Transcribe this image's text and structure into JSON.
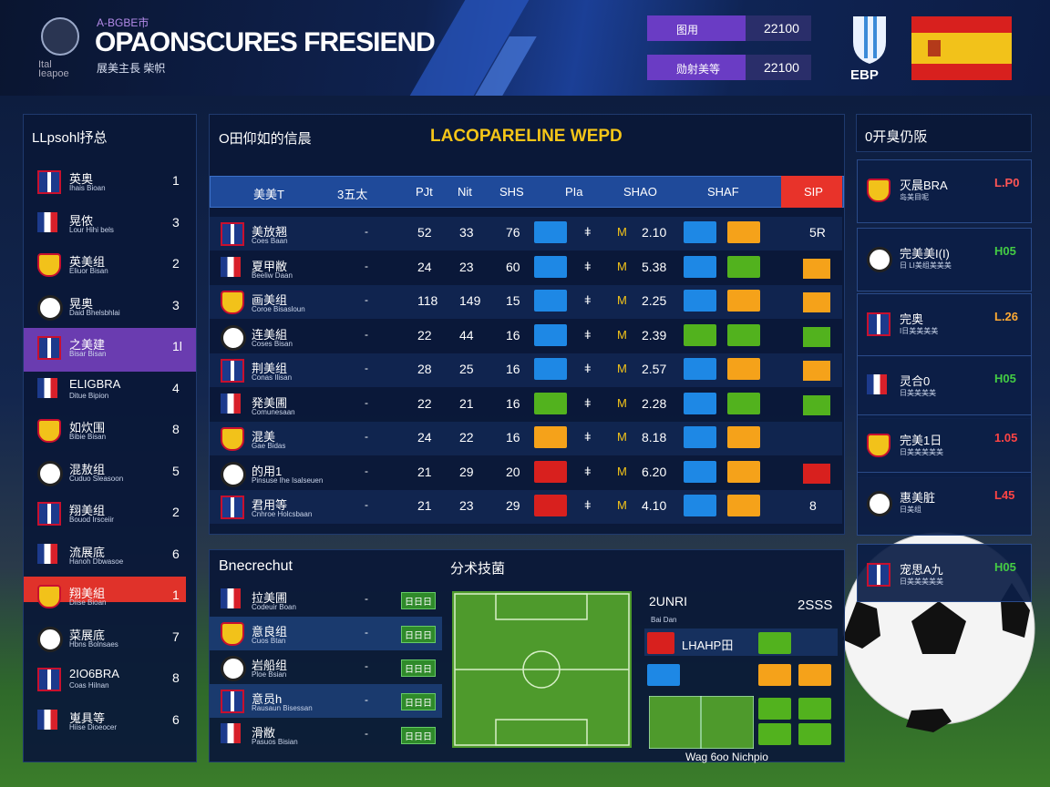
{
  "header": {
    "tag": "A-BGBE市",
    "title": "OPAONSCURES FRESIEND",
    "subtitle": "展美主長 柴帜",
    "logo_text": "Ital Ieapoe",
    "scores": [
      {
        "label": "图用",
        "value": "22100"
      },
      {
        "label": "勋射美等",
        "value": "22100"
      }
    ],
    "team_code": "EBP"
  },
  "left_panel": {
    "title": "LLpsohl抒总",
    "rows": [
      {
        "name": "英奥",
        "sub": "Ihais Bioan",
        "num": "1"
      },
      {
        "name": "晃侬",
        "sub": "Lour Hihi bels",
        "num": "3"
      },
      {
        "name": "英美组",
        "sub": "Eliuor Bisan",
        "num": "2"
      },
      {
        "name": "晃奥",
        "sub": "Daid Bhelsbhlai",
        "num": "3"
      },
      {
        "name": "之美建",
        "sub": "Bisar Bisan",
        "num": "1l"
      },
      {
        "name": "ELIGBRA",
        "sub": "Ditue Bipion",
        "num": "4"
      },
      {
        "name": "如炊围",
        "sub": "Bibie Bisan",
        "num": "8"
      },
      {
        "name": "混敖组",
        "sub": "Cuduo Sleasoon",
        "num": "5"
      },
      {
        "name": "翔美组",
        "sub": "Bouod Irsceiir",
        "num": "2"
      },
      {
        "name": "流展底",
        "sub": "Hanoh Dbwasoe",
        "num": "6"
      },
      {
        "name": "翔美組",
        "sub": "Diise Bioan",
        "num": "1"
      },
      {
        "name": "菜展底",
        "sub": "Hbns Bolnsaes",
        "num": "7"
      },
      {
        "name": "2IO6BRA",
        "sub": "Coas Hilnan",
        "num": "8"
      },
      {
        "name": "嵬具等",
        "sub": "Hiise Dioeocer",
        "num": "6"
      }
    ]
  },
  "main_table": {
    "section": "O田仰如的信晨",
    "title": "LACOPARELINE WEPD",
    "columns": [
      "美美T",
      "3五太",
      "PJt",
      "Nit",
      "SHS",
      "PIa",
      "SHAO",
      "SHAF",
      "SIP"
    ],
    "rows": [
      {
        "name": "美放翘",
        "sub": "Coes Baan",
        "dash": "-",
        "a": "52",
        "b": "33",
        "c": "76",
        "sym": "ǂ",
        "m": "M",
        "score": "2.10",
        "last": "5R"
      },
      {
        "name": "夏甲敝",
        "sub": "Beeliw Daan",
        "dash": "-",
        "a": "24",
        "b": "23",
        "c": "60",
        "sym": "ǂ",
        "m": "M",
        "score": "5.38"
      },
      {
        "name": "画美组",
        "sub": "Coroe Bisasloun",
        "dash": "-",
        "a": "118",
        "b": "149",
        "c": "15",
        "sym": "ǂ",
        "m": "M",
        "score": "2.25"
      },
      {
        "name": "连美組",
        "sub": "Coses Bisan",
        "dash": "-",
        "a": "22",
        "b": "44",
        "c": "16",
        "sym": "ǂ",
        "m": "M",
        "score": "2.39"
      },
      {
        "name": "荆美组",
        "sub": "Conas Ilisan",
        "dash": "-",
        "a": "28",
        "b": "25",
        "c": "16",
        "sym": "ǂ",
        "m": "M",
        "score": "2.57"
      },
      {
        "name": "発美圃",
        "sub": "Comunesaan",
        "dash": "-",
        "a": "22",
        "b": "21",
        "c": "16",
        "sym": "ǂ",
        "m": "M",
        "score": "2.28"
      },
      {
        "name": "混美",
        "sub": "Gae Bidas",
        "dash": "-",
        "a": "24",
        "b": "22",
        "c": "16",
        "sym": "ǂ",
        "m": "M",
        "score": "8.18"
      },
      {
        "name": "的用1",
        "sub": "Pinsuse Ihe Isalseuen",
        "dash": "-",
        "a": "21",
        "b": "29",
        "c": "20",
        "sym": "ǂ",
        "m": "M",
        "score": "6.20"
      },
      {
        "name": "君用等",
        "sub": "Cnhroe Holcsbaan",
        "dash": "-",
        "a": "21",
        "b": "23",
        "c": "29",
        "sym": "ǂ",
        "m": "M",
        "score": "4.10",
        "last": "8"
      }
    ]
  },
  "bottom_list": {
    "title": "Bnecrechut",
    "rows": [
      {
        "name": "拉美圃",
        "sub": "Codeuir Boan",
        "dash": "-",
        "badge": "日日日"
      },
      {
        "name": "意良组",
        "sub": "Cuos Btan",
        "dash": "-",
        "badge": "日日日"
      },
      {
        "name": "岩船组",
        "sub": "Ploe Bsian",
        "dash": "-",
        "badge": "日日日"
      },
      {
        "name": "意员h",
        "sub": "Rausaun Bisessan",
        "dash": "-",
        "badge": "日日日"
      },
      {
        "name": "滑敝",
        "sub": "Pasuos Bisian",
        "dash": "-",
        "badge": "日日日"
      }
    ]
  },
  "tactics": {
    "title": "分术技菌",
    "team": "2UNRI",
    "team_sub": "Bai Dan",
    "score": "2SSS",
    "row_label": "LHAHP田",
    "footer": "Wag 6oo Nichpio"
  },
  "right_panel": {
    "title": "0开臭仍阪",
    "cards": [
      {
        "name": "灭晨BRA",
        "sub": "岛美目呢",
        "score": "L.P0"
      },
      {
        "name": "完美美I(I)",
        "sub": "日 LI美组美美美",
        "score": "H05"
      },
      {
        "name": "完奥",
        "sub": "I日美美美美",
        "score": "L.26"
      },
      {
        "name": "灵合0",
        "sub": "日美美美美",
        "score": "H05"
      },
      {
        "name": "完美1日",
        "sub": "日美美美美美",
        "score": "1.05"
      },
      {
        "name": "惠美脏",
        "sub": "日美组",
        "score": "L45"
      },
      {
        "name": "宠思A九",
        "sub": "日美美美美美",
        "score": "H05"
      }
    ]
  }
}
